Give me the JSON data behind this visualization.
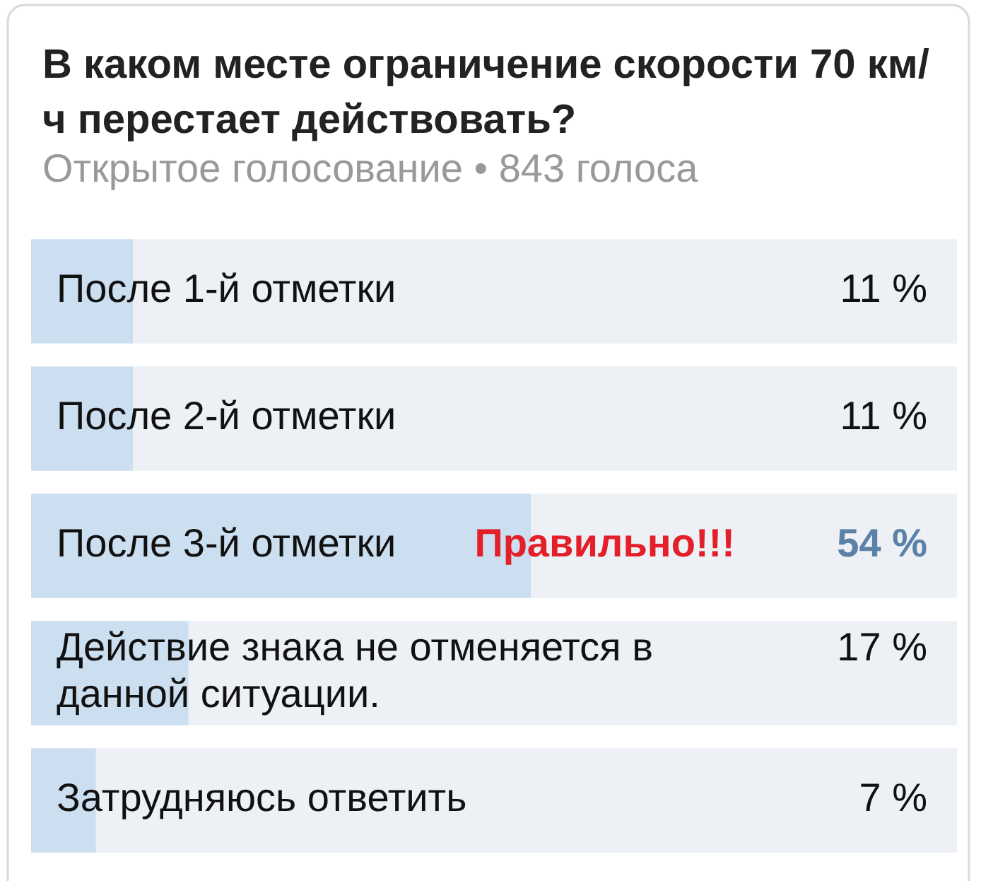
{
  "chart_data": {
    "type": "bar",
    "orientation": "horizontal",
    "title": "В каком месте ограничение скорости 70 км/ч перестает действовать?",
    "subtitle": "Открытое голосование • 843 голоса",
    "categories": [
      "После 1-й отметки",
      "После 2-й отметки",
      "После 3-й отметки",
      "Действие знака не отменяется в данной ситуации.",
      "Затрудняюсь ответить"
    ],
    "values": [
      11,
      11,
      54,
      17,
      7
    ],
    "color": "#ccdff0",
    "xlim": [
      0,
      100
    ],
    "tick_labels": false,
    "value_labels": [
      "11 %",
      "11 %",
      "54 %",
      "17 %",
      "7 %"
    ],
    "annotations": [
      {
        "text": "Правильно!!!",
        "x": 54,
        "y": "После 3-й отметки"
      }
    ]
  }
}
